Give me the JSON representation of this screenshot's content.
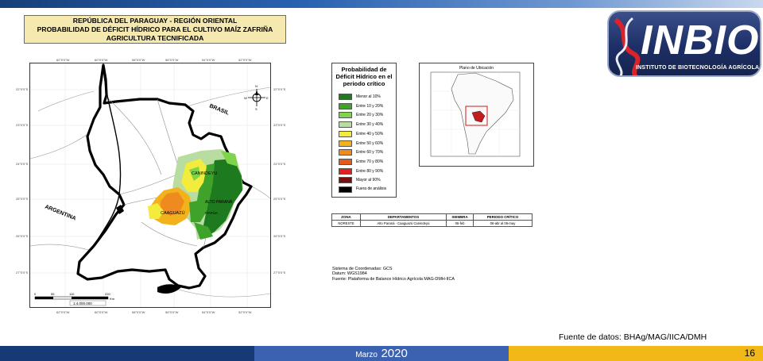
{
  "title": {
    "line1": "REPÚBLICA DEL PARAGUAY - REGIÓN ORIENTAL",
    "line2": "PROBABILIDAD DE DÉFICIT HÍDRICO PARA EL CULTIVO MAÍZ ZAFRIÑA",
    "line3": "AGRICULTURA TECNIFICADA"
  },
  "logo": {
    "word": "INBIO",
    "subtitle": "INSTITUTO DE BIOTECNOLOGÍA AGRÍCOLA"
  },
  "map": {
    "labels": {
      "brasil": "BRASIL",
      "argentina": "ARGENTINA",
      "canindeyu": "CANINDEYU",
      "alto_parana": "ALTO PARANÁ",
      "caaguazu": "CAAGUAZÚ",
      "itapua": "ITAPÚA",
      "north": "N",
      "south": "S",
      "east": "E",
      "west": "W"
    },
    "lon_ticks": [
      "62°0'0\"W",
      "60°0'0\"W",
      "58°0'0\"W",
      "56°0'0\"W",
      "54°0'0\"W",
      "52°0'0\"W"
    ],
    "lat_ticks": [
      "22°0'0\"S",
      "23°0'0\"S",
      "24°0'0\"S",
      "25°0'0\"S",
      "26°0'0\"S",
      "27°0'0\"S"
    ],
    "scale_ticks": [
      "0",
      "55",
      "110",
      "220"
    ],
    "scale_unit": "Km",
    "scale_ratio": "1:4.000.000"
  },
  "legend": {
    "title": "Probabilidad de Déficit Hídrico en el periodo crítico",
    "items": [
      {
        "label": "Menor al 10%",
        "color": "#1e7a1e"
      },
      {
        "label": "Entre 10 y 20%",
        "color": "#3fa32b"
      },
      {
        "label": "Entre 20 y 30%",
        "color": "#7ed44a"
      },
      {
        "label": "Entre 30 y 40%",
        "color": "#b9dca0"
      },
      {
        "label": "Entre 40 y 50%",
        "color": "#f4ec3c"
      },
      {
        "label": "Entre 50 y 60%",
        "color": "#f2b21c"
      },
      {
        "label": "Entre 60 y 70%",
        "color": "#ee8a1e"
      },
      {
        "label": "Entre 70 y 80%",
        "color": "#e55a18"
      },
      {
        "label": "Entre 80 y 90%",
        "color": "#e11f1f"
      },
      {
        "label": "Mayor al 90%",
        "color": "#7a0d0d"
      },
      {
        "label": "Fuera de análisis",
        "color": "#000000"
      }
    ]
  },
  "location_map": {
    "title": "Plano de Ubicación"
  },
  "table": {
    "headers": [
      "ZONA",
      "DEPARTAMENTOS",
      "SIEMBRA",
      "PERIODO CRÍTICO"
    ],
    "row": [
      "NORESTE",
      "Alto Paraná - Caaguazú Canindeyú",
      "06-feb",
      "06-abr al 06-may"
    ]
  },
  "metadata": {
    "line1": "Sistema de Coordenadas: GCS",
    "line2": "Datum: WGS1984",
    "line3": "Fuente: Plataforma de Balance Hídrico Agrícola MAG-DMH-IICA"
  },
  "footer": {
    "source": "Fuente de datos: BHAg/MAG/IICA/DMH",
    "month": "Marzo",
    "year": "2020",
    "page": "16"
  }
}
